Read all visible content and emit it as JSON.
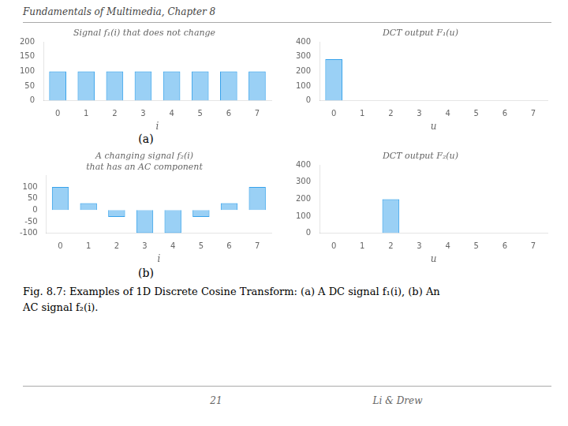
{
  "chart_data": [
    {
      "type": "bar",
      "title": "Signal f₁(i) that does not change",
      "xlabel": "i",
      "categories": [
        0,
        1,
        2,
        3,
        4,
        5,
        6,
        7
      ],
      "values": [
        100,
        100,
        100,
        100,
        100,
        100,
        100,
        100
      ],
      "ylim": [
        0,
        200
      ],
      "yticks": [
        0,
        50,
        100,
        150,
        200
      ],
      "grid": false
    },
    {
      "type": "bar",
      "title": "DCT output F₁(u)",
      "xlabel": "u",
      "categories": [
        0,
        1,
        2,
        3,
        4,
        5,
        6,
        7
      ],
      "values": [
        282.8,
        0,
        0,
        0,
        0,
        0,
        0,
        0
      ],
      "ylim": [
        0,
        400
      ],
      "yticks": [
        0,
        100,
        200,
        300,
        400
      ],
      "grid": false
    },
    {
      "type": "bar",
      "title": [
        "A changing signal f₂(i)",
        "that has an AC component"
      ],
      "xlabel": "i",
      "categories": [
        0,
        1,
        2,
        3,
        4,
        5,
        6,
        7
      ],
      "values": [
        100,
        30,
        -30,
        -100,
        -100,
        -30,
        30,
        100
      ],
      "ylim": [
        -100,
        150
      ],
      "yticks": [
        -100,
        -50,
        0,
        50,
        100
      ],
      "grid": false
    },
    {
      "type": "bar",
      "title": "DCT output F₂(u)",
      "xlabel": "u",
      "categories": [
        0,
        1,
        2,
        3,
        4,
        5,
        6,
        7
      ],
      "values": [
        0,
        0,
        200,
        0,
        0,
        0,
        0,
        0
      ],
      "ylim": [
        0,
        400
      ],
      "yticks": [
        0,
        100,
        200,
        300,
        400
      ],
      "grid": false
    }
  ],
  "annotations": [
    "Fundamentals of Multimedia, Chapter 8",
    "(a)",
    "(b)",
    "Fig. 8.7: Examples of 1D Discrete Cosine Transform: (a) A DC signal f₁(i), (b) An",
    "AC signal f₂(i).",
    "21",
    "Li & Drew"
  ]
}
